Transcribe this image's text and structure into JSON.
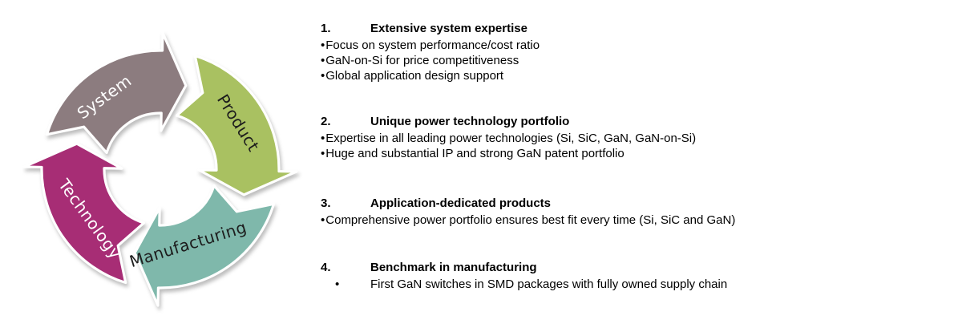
{
  "diagram": {
    "bullet_char": "•",
    "outline_color": "#ffffff",
    "segments": [
      {
        "label": "System",
        "color": "#8c7c7f",
        "text_color": "#ffffff"
      },
      {
        "label": "Product",
        "color": "#a9c161",
        "text_color": "#1d1d1d"
      },
      {
        "label": "Manufacturing",
        "color": "#7fb8ab",
        "text_color": "#1d1d1d"
      },
      {
        "label": "Technology",
        "color": "#a72d75",
        "text_color": "#ffffff"
      }
    ]
  },
  "points": [
    {
      "number": "1.",
      "title": "Extensive system expertise",
      "bullet_style": "inline",
      "bullets": [
        "Focus on system performance/cost ratio",
        "GaN-on-Si for price competitiveness",
        "Global application design support"
      ]
    },
    {
      "number": "2.",
      "title": "Unique power technology portfolio",
      "bullet_style": "inline",
      "bullets": [
        "Expertise in all leading power technologies (Si, SiC, GaN, GaN-on-Si)",
        "Huge and substantial IP and strong GaN patent portfolio"
      ]
    },
    {
      "number": "3.",
      "title": "Application-dedicated products",
      "bullet_style": "inline",
      "bullets": [
        "Comprehensive power portfolio ensures best fit every time (Si, SiC and GaN)"
      ]
    },
    {
      "number": "4.",
      "title": "Benchmark in manufacturing",
      "bullet_style": "indented",
      "bullets": [
        "First GaN switches in SMD packages with fully owned supply chain"
      ]
    }
  ]
}
